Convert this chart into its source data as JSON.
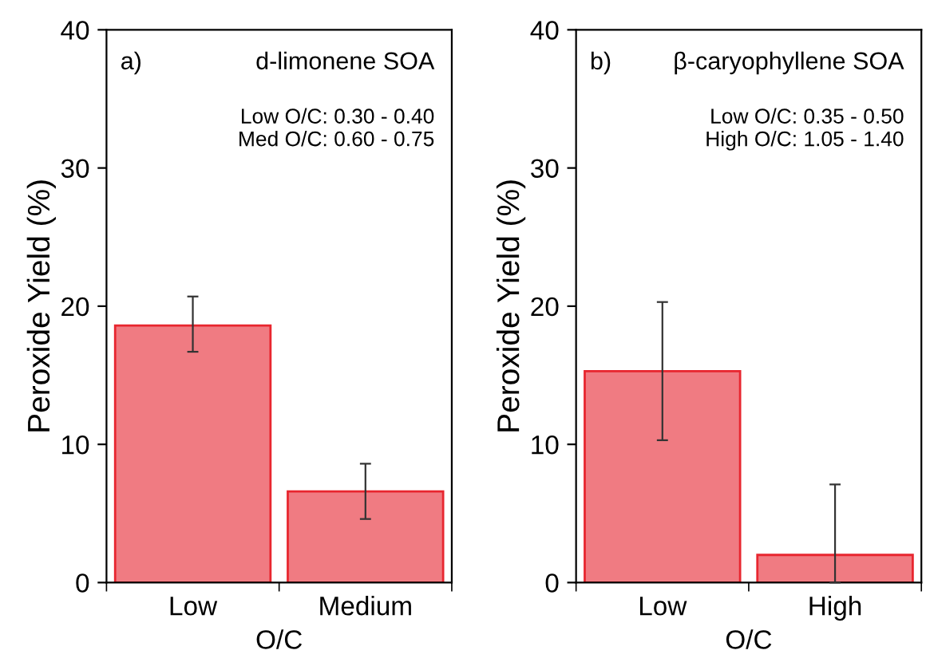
{
  "chart_data": [
    {
      "type": "bar",
      "title": "d-limonene SOA",
      "xlabel": "O/C",
      "ylabel": "Peroxide Yield (%)",
      "categories": [
        "Low",
        "Medium"
      ],
      "series": [
        {
          "color": "#f07b82",
          "values": [
            18.6,
            6.6
          ],
          "errors": [
            [
              16.7,
              20.7
            ],
            [
              4.6,
              8.6
            ]
          ]
        }
      ],
      "annotations": [
        "a)",
        "Low O/C: 0.30 - 0.40\nMed O/C: 0.60 - 0.75"
      ],
      "ylim": [
        0,
        40
      ],
      "yticks": [
        0,
        10,
        20,
        30,
        40
      ],
      "grid": false,
      "legend": false
    },
    {
      "type": "bar",
      "title": "β-caryophyllene SOA",
      "xlabel": "O/C",
      "ylabel": "Peroxide Yield (%)",
      "categories": [
        "Low",
        "High"
      ],
      "series": [
        {
          "color": "#f07b82",
          "values": [
            15.3,
            2.0
          ],
          "errors": [
            [
              10.3,
              20.3
            ],
            [
              0,
              7.1
            ]
          ]
        }
      ],
      "annotations": [
        "b)",
        "Low O/C: 0.35 - 0.50\nHigh O/C: 1.05 - 1.40"
      ],
      "ylim": [
        0,
        40
      ],
      "yticks": [
        0,
        10,
        20,
        30,
        40
      ],
      "grid": false,
      "legend": false
    }
  ]
}
